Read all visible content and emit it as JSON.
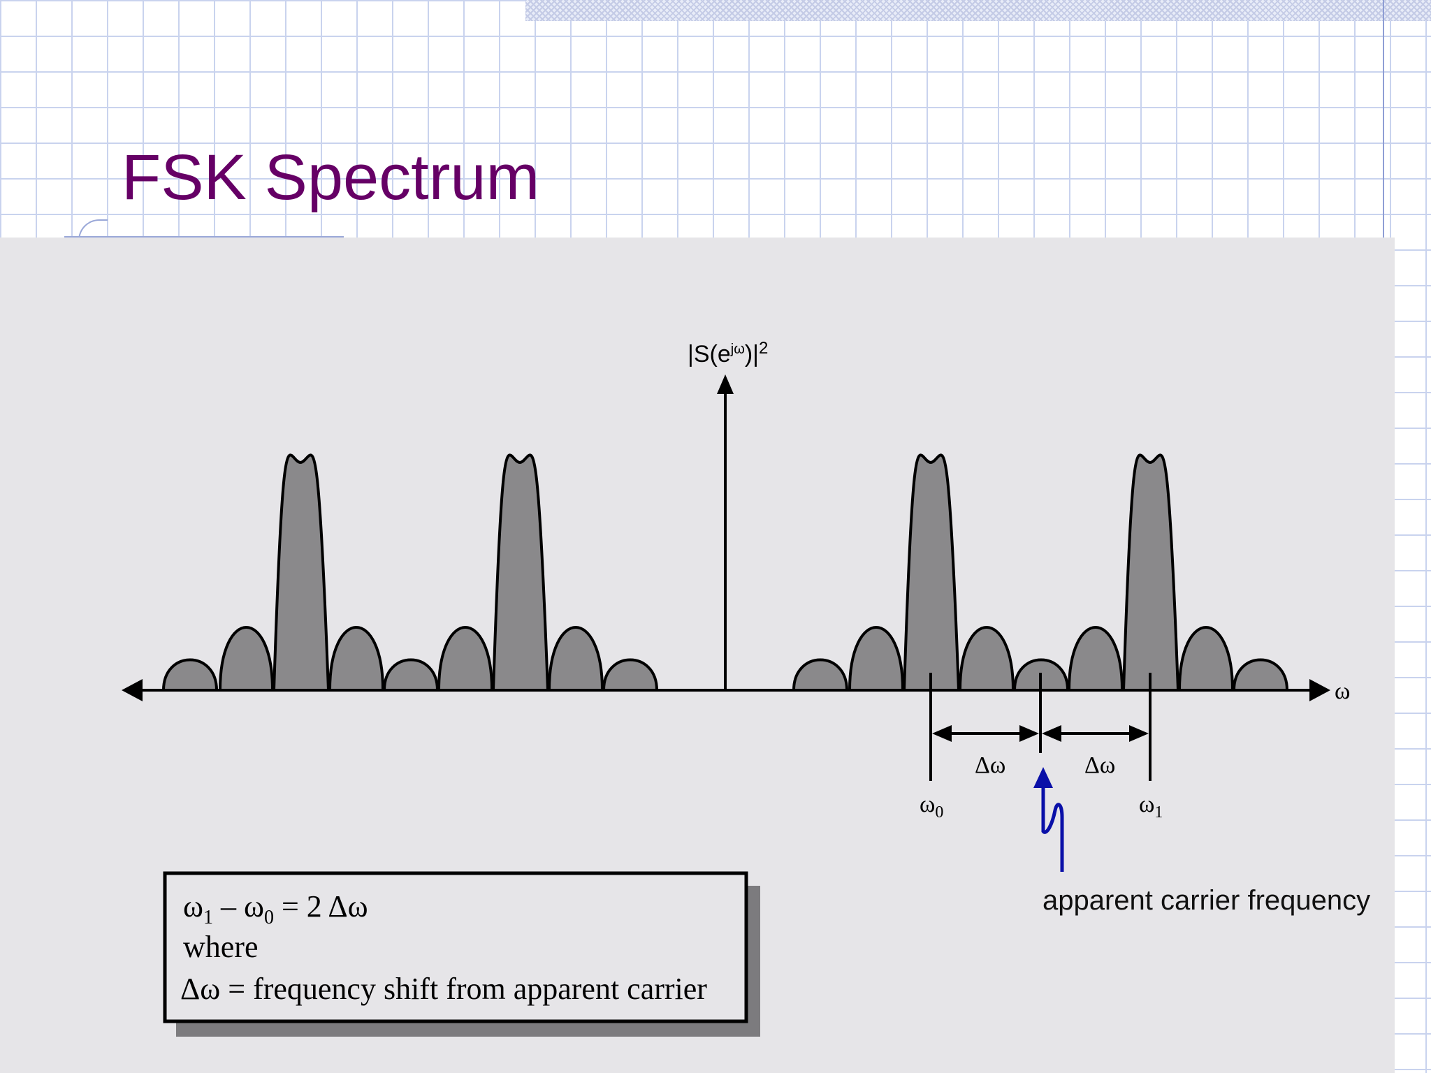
{
  "slide": {
    "title": "FSK Spectrum"
  },
  "diagram": {
    "y_axis_label": "|S(e",
    "y_axis_label_sup": "jω",
    "y_axis_label_end": ")|",
    "y_axis_label_power": "2",
    "x_axis_label": "ω",
    "delta_left": "Δω",
    "delta_right": "Δω",
    "omega0": "ω",
    "omega0_sub": "0",
    "omega1": "ω",
    "omega1_sub": "1",
    "carrier_annotation": "apparent carrier frequency",
    "lobe_color": "#8a898b",
    "arrow_color": "#0a10a8"
  },
  "equation_box": {
    "line1_w1": "ω",
    "line1_sub1": "1",
    "line1_minus": " – ω",
    "line1_sub0": "0",
    "line1_rest": " = 2 Δω",
    "line2": "where",
    "line3": "Δω = frequency shift from apparent carrier"
  }
}
